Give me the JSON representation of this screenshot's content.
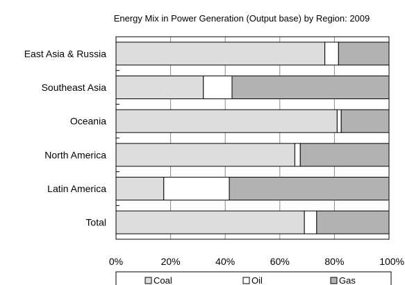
{
  "chart_data": {
    "type": "bar",
    "orientation": "horizontal",
    "stacked": true,
    "normalized": "percent",
    "title": "Energy Mix in Power Generation (Output base) by Region: 2009",
    "categories": [
      "East Asia & Russia",
      "Southeast Asia",
      "Oceania",
      "North America",
      "Latin America",
      "Total"
    ],
    "series": [
      {
        "name": "Coal",
        "color": "#dddddd",
        "values": [
          76.5,
          32,
          81,
          65.5,
          17.5,
          69
        ]
      },
      {
        "name": "Oil",
        "color": "#ffffff",
        "values": [
          5,
          10.5,
          1.5,
          2,
          24,
          4.5
        ]
      },
      {
        "name": "Gas",
        "color": "#b2b2b2",
        "values": [
          18.5,
          57.5,
          17.5,
          32.5,
          58.5,
          26.5
        ]
      }
    ],
    "xlim": [
      0,
      100
    ],
    "xticks": [
      "0%",
      "20%",
      "40%",
      "60%",
      "80%",
      "100%"
    ],
    "grid": "vertical",
    "legend": "bottom"
  }
}
